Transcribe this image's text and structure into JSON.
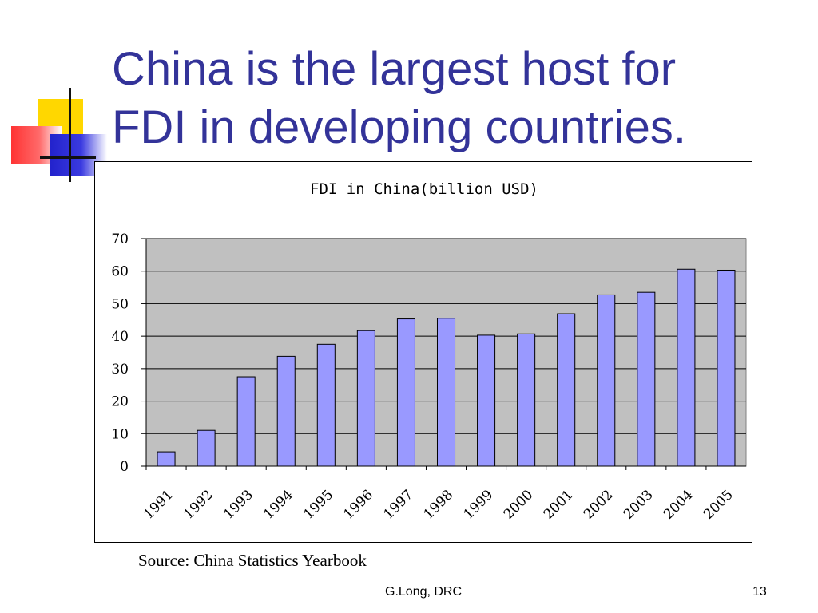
{
  "slide": {
    "title_line1": "China is the largest host for",
    "title_line2": "FDI in developing countries.",
    "source": "Source: China Statistics Yearbook",
    "footer_author": "G.Long, DRC",
    "page_number": "13"
  },
  "colors": {
    "title": "#333399",
    "bar_fill": "#9999ff",
    "plot_background": "#c0c0c0"
  },
  "chart_data": {
    "type": "bar",
    "title": "FDI in China(billion USD)",
    "xlabel": "",
    "ylabel": "",
    "categories": [
      "1991",
      "1992",
      "1993",
      "1994",
      "1995",
      "1996",
      "1997",
      "1998",
      "1999",
      "2000",
      "2001",
      "2002",
      "2003",
      "2004",
      "2005"
    ],
    "values": [
      4.4,
      11.0,
      27.5,
      33.8,
      37.5,
      41.7,
      45.3,
      45.5,
      40.3,
      40.7,
      46.9,
      52.7,
      53.5,
      60.6,
      60.3
    ],
    "ylim": [
      0,
      70
    ],
    "yticks": [
      "0",
      "10",
      "20",
      "30",
      "40",
      "50",
      "60",
      "70"
    ],
    "grid": true,
    "legend": false
  }
}
